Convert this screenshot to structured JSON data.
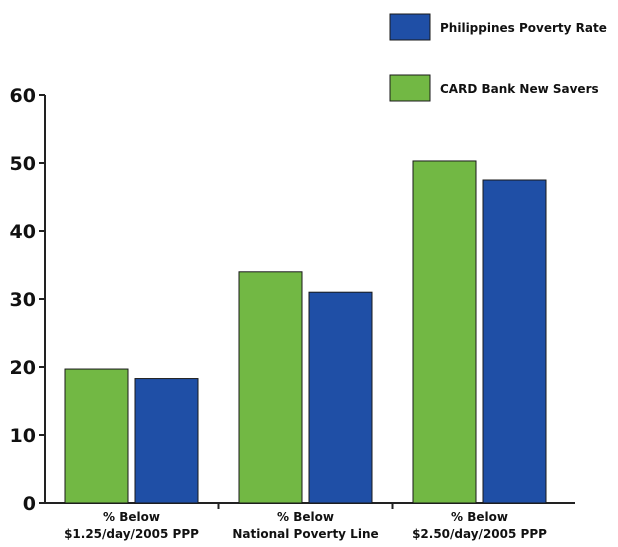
{
  "chart_data": {
    "type": "bar",
    "title": "",
    "xlabel": "",
    "ylabel": "",
    "categories": [
      [
        "% Below",
        "$1.25/day/2005 PPP"
      ],
      [
        "% Below",
        "National Poverty Line"
      ],
      [
        "% Below",
        "$2.50/day/2005 PPP"
      ]
    ],
    "series": [
      {
        "name": "CARD Bank New Savers",
        "color": "#72b844",
        "values": [
          19.7,
          34.0,
          50.3
        ]
      },
      {
        "name": "Philippines Poverty Rate",
        "color": "#1f4fa6",
        "values": [
          18.3,
          31.0,
          47.5
        ]
      }
    ],
    "legend_order": [
      1,
      0
    ],
    "legend_position": "top-right",
    "ylim": [
      0,
      60
    ],
    "yticks": [
      0,
      10,
      20,
      30,
      40,
      50,
      60
    ],
    "grid": false
  }
}
